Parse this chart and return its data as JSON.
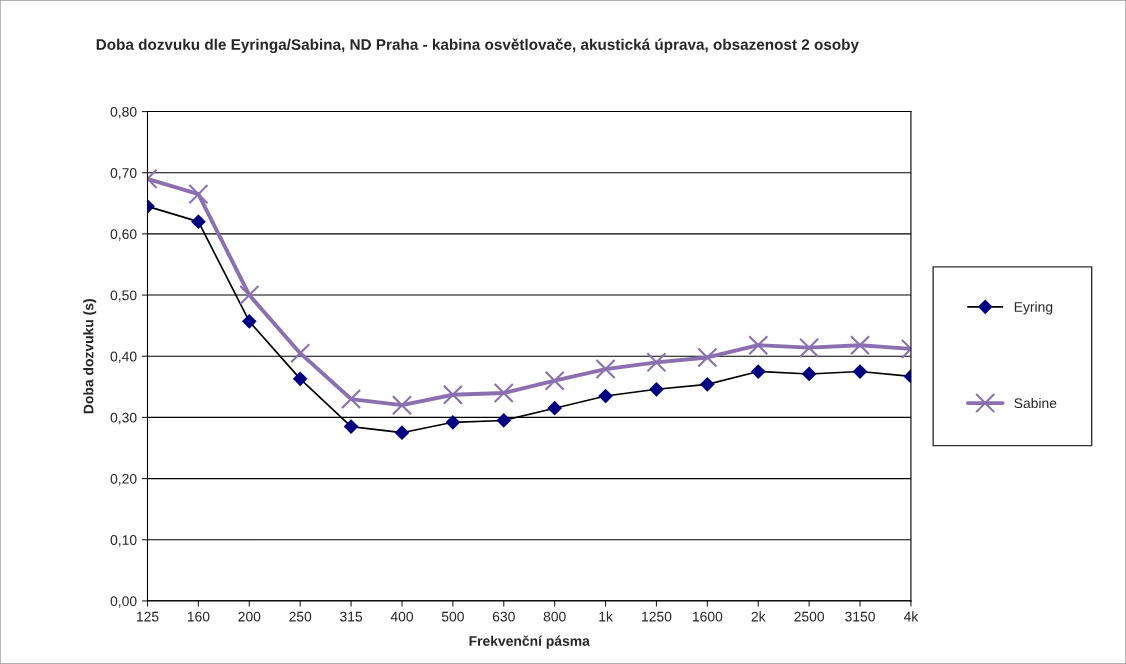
{
  "chart_data": {
    "type": "line",
    "title": "Doba dozvuku dle Eyringa/Sabina, ND Praha - kabina osvětlovače, akustická úprava, obsazenost 2 osoby",
    "xlabel": "Frekvenční pásma",
    "ylabel": "Doba dozvuku (s)",
    "categories": [
      "125",
      "160",
      "200",
      "250",
      "315",
      "400",
      "500",
      "630",
      "800",
      "1k",
      "1250",
      "1600",
      "2k",
      "2500",
      "3150",
      "4k"
    ],
    "series": [
      {
        "name": "Eyring",
        "color": "#000080",
        "marker": "diamond",
        "values": [
          0.645,
          0.62,
          0.457,
          0.363,
          0.285,
          0.275,
          0.292,
          0.295,
          0.315,
          0.335,
          0.346,
          0.354,
          0.375,
          0.371,
          0.375,
          0.367
        ]
      },
      {
        "name": "Sabine",
        "color": "#8c6fb0",
        "marker": "cross",
        "values": [
          0.69,
          0.665,
          0.5,
          0.405,
          0.33,
          0.32,
          0.337,
          0.34,
          0.36,
          0.379,
          0.39,
          0.398,
          0.418,
          0.414,
          0.418,
          0.412
        ]
      }
    ],
    "ylim": [
      0,
      0.8
    ],
    "yticks": [
      {
        "value": 0,
        "label": "0,00"
      },
      {
        "value": 0.1,
        "label": "0,10"
      },
      {
        "value": 0.2,
        "label": "0,20"
      },
      {
        "value": 0.3,
        "label": "0,30"
      },
      {
        "value": 0.4,
        "label": "0,40"
      },
      {
        "value": 0.5,
        "label": "0,50"
      },
      {
        "value": 0.6,
        "label": "0,60"
      },
      {
        "value": 0.7,
        "label": "0,70"
      },
      {
        "value": 0.8,
        "label": "0,80"
      }
    ],
    "grid": "y",
    "legend": "right"
  }
}
